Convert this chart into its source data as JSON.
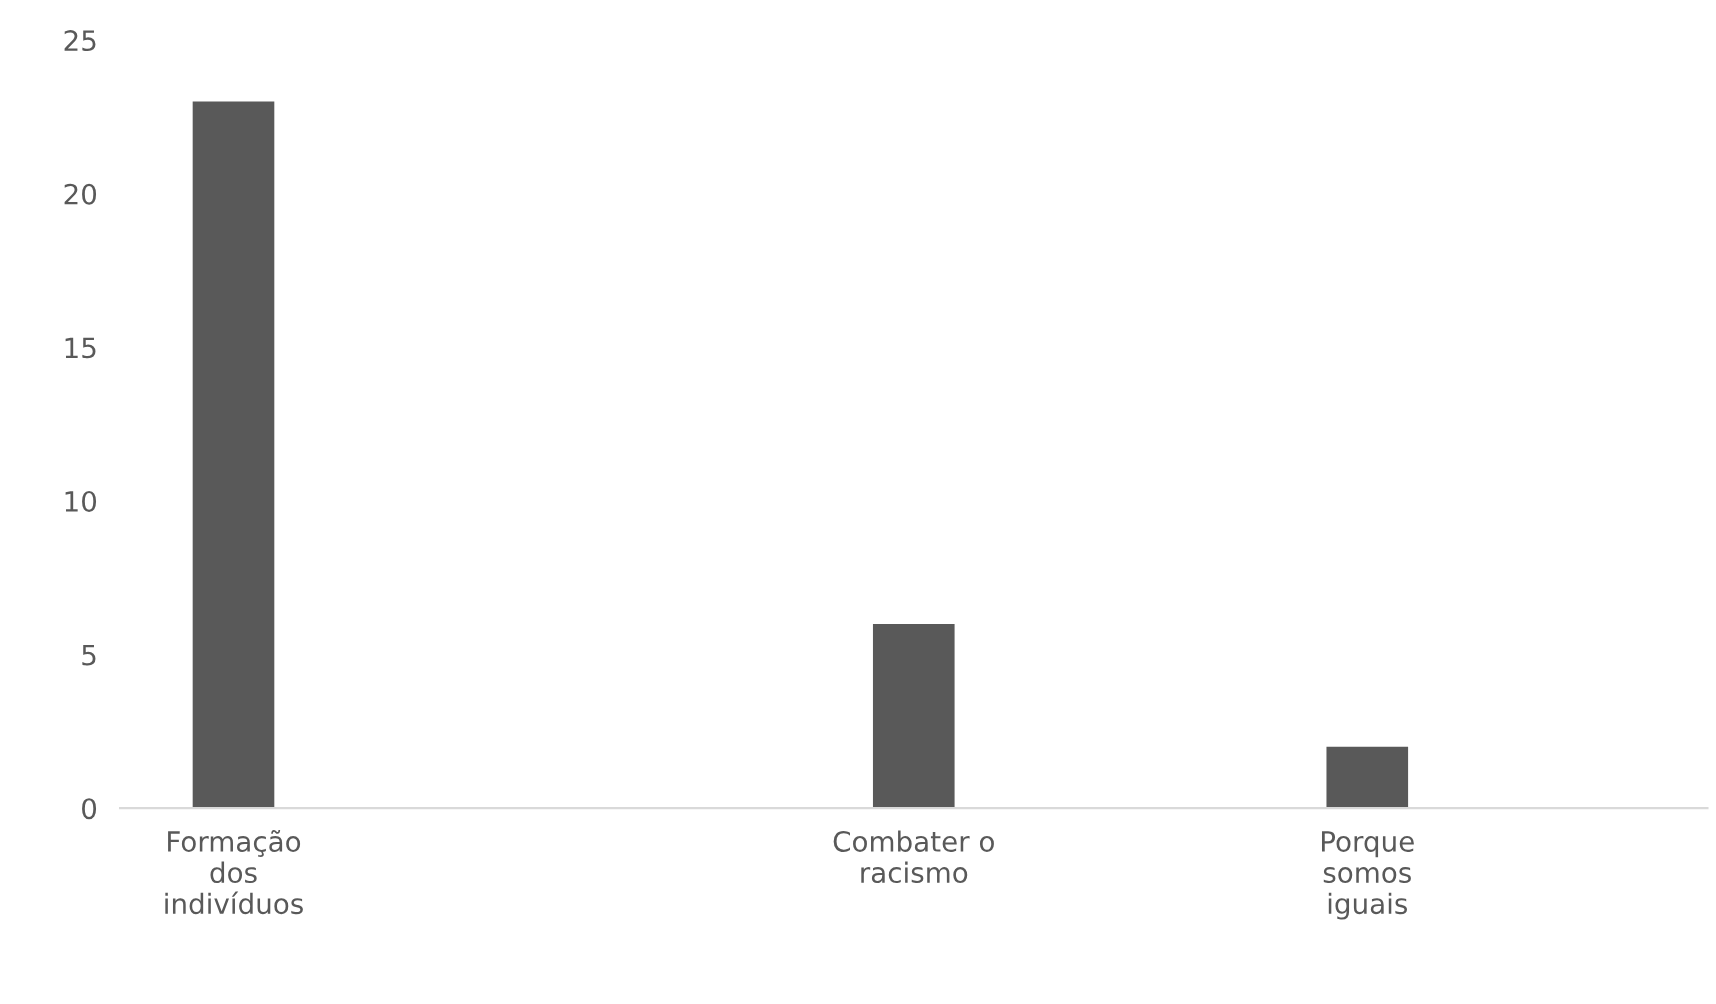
{
  "chart_data": {
    "type": "bar",
    "categories": [
      "Formação\ndos\nindivíduos",
      null,
      null,
      "Combater o\nracismo",
      null,
      "Porque\nsomos\niguais",
      null
    ],
    "values": [
      23,
      null,
      null,
      6,
      null,
      2,
      null
    ],
    "color": "#595959",
    "ylim": [
      0,
      25
    ],
    "yticks": [
      0,
      5,
      10,
      15,
      20,
      25
    ],
    "grid": false,
    "legend": false
  }
}
